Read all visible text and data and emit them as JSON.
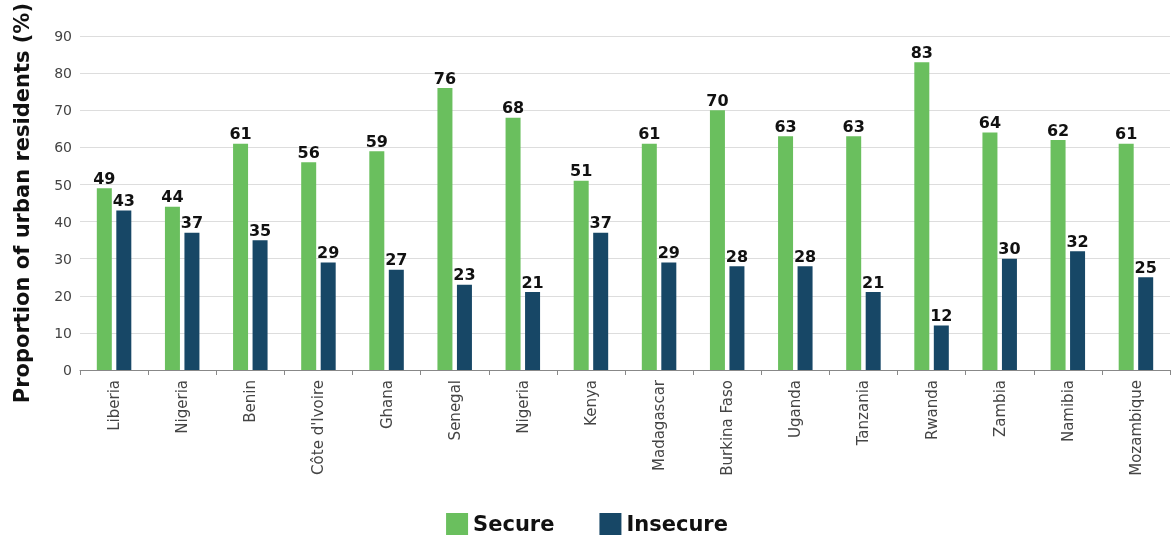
{
  "chart_data": {
    "type": "bar",
    "ylabel": "Proportion of urban residents (%)",
    "categories": [
      "Liberia",
      "Nigeria",
      "Benin",
      "Côte d'Ivoire",
      "Ghana",
      "Senegal",
      "Nigeria",
      "Kenya",
      "Madagascar",
      "Burkina Faso",
      "Uganda",
      "Tanzania",
      "Rwanda",
      "Zambia",
      "Namibia",
      "Mozambique"
    ],
    "series": [
      {
        "name": "Secure",
        "color": "#6abf5e",
        "values": [
          49,
          44,
          61,
          56,
          59,
          76,
          68,
          51,
          61,
          70,
          63,
          63,
          83,
          64,
          62,
          61
        ]
      },
      {
        "name": "Insecure",
        "color": "#174766",
        "values": [
          43,
          37,
          35,
          29,
          27,
          23,
          21,
          37,
          29,
          28,
          28,
          21,
          12,
          30,
          32,
          25
        ]
      }
    ],
    "ylim": [
      0,
      90
    ],
    "yticks": [
      0,
      10,
      20,
      30,
      40,
      50,
      60,
      70,
      80,
      90
    ],
    "grid": "y",
    "legend": "bottom",
    "data_labels": true
  }
}
